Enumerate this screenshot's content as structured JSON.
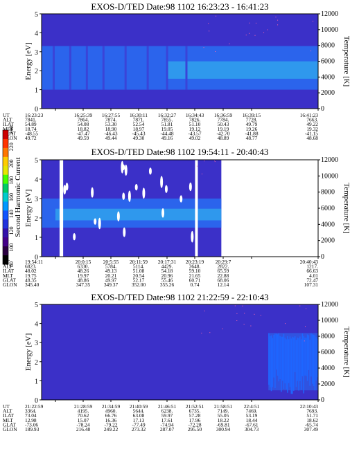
{
  "colorbar": {
    "label": "Second Harmonic Current",
    "ticks": [
      "240",
      "220",
      "200",
      "180",
      "160",
      "140",
      "120",
      "100",
      "80"
    ],
    "colors": [
      "#cc0000",
      "#ff3300",
      "#ff7700",
      "#ffcc00",
      "#e6e600",
      "#44ff00",
      "#00cc66",
      "#00cccc",
      "#0099ff",
      "#1155ff",
      "#2233dd",
      "#3311aa",
      "#440088",
      "#2a0040",
      "#000000"
    ]
  },
  "chart_data": [
    {
      "type": "heatmap",
      "title": "EXOS-D/TED   Date:98 1102   16:23:23 - 16:41:23",
      "ylabel": "Energy [eV]",
      "y2label": "Temperature [K]",
      "ylim": [
        0,
        5
      ],
      "y2lim": [
        0,
        12000
      ],
      "yticks": [
        "0",
        "1",
        "2",
        "3",
        "4",
        "5"
      ],
      "y2ticks": [
        "0",
        "2000",
        "4000",
        "6000",
        "8000",
        "10000",
        "12000"
      ],
      "colors": {
        "background": "#3b30c8",
        "band_low": "#2a6af0",
        "band_high": "#33c2ee",
        "noise": "#ff66aa"
      },
      "band": {
        "energy_low": 1.0,
        "energy_high": 3.3
      },
      "table": {
        "labels": [
          "UT",
          "ALT",
          "ILAT",
          "MLT",
          "GLAT",
          "GLON"
        ],
        "rows": [
          [
            "16:23:23",
            "16:25:39",
            "16:27:55",
            "16:30:11",
            "16:32:27",
            "16:34:43",
            "16:36:59",
            "16:39:15",
            "16:41:23"
          ],
          [
            "7841.",
            "7864.",
            "7874.",
            "7871.",
            "7855.",
            "7826.",
            "7784.",
            "7728.",
            "7663."
          ],
          [
            "54.89",
            "54.08",
            "53.30",
            "52.54",
            "51.81",
            "51.10",
            "50.43",
            "49.79",
            "49.22"
          ],
          [
            "18.74",
            "18.82",
            "18.90",
            "18.97",
            "19.05",
            "19.12",
            "19.19",
            "19.26",
            "19.32"
          ],
          [
            "-48.55",
            "-47.47",
            "-46.43",
            "-45.43",
            "-44.48",
            "-43.57",
            "-42.70",
            "-41.88",
            "-41.15"
          ],
          [
            "49.72",
            "49.59",
            "49.44",
            "49.30",
            "49.16",
            "49.02",
            "48.89",
            "48.77",
            "48.68"
          ]
        ]
      }
    },
    {
      "type": "heatmap",
      "title": "EXOS-D/TED   Date:98 1102   19:54:11 - 20:40:43",
      "ylabel": "Energy [eV]",
      "y2label": "Temperature [K]",
      "ylim": [
        0,
        5
      ],
      "y2lim": [
        0,
        12000
      ],
      "yticks": [
        "0",
        "1",
        "2",
        "3",
        "4",
        "5"
      ],
      "y2ticks": [
        "0",
        "2000",
        "4000",
        "6000",
        "8000",
        "10000",
        "12000"
      ],
      "colors": {
        "background": "#3b30c8",
        "band_low": "#2a6af0",
        "band_high": "#33c2ee",
        "noise": "#ff66aa"
      },
      "band": {
        "energy_low": 1.5,
        "energy_high": 3.0
      },
      "data_end_fraction": 0.65,
      "table": {
        "labels": [
          "UT",
          "ALT",
          "ILAT",
          "MLT",
          "GLAT",
          "GLON"
        ],
        "rows": [
          [
            "19:54:11",
            "20:0:15",
            "20:5:55",
            "20:11:59",
            "20:17:31",
            "20:23:19",
            "20:29:7",
            "",
            "20:40:43"
          ],
          [
            "6823.",
            "6330.",
            "5784.",
            "5114.",
            "4429.",
            "3648.",
            "2822.",
            "",
            "1217."
          ],
          [
            "48.02",
            "48.26",
            "49.13",
            "51.08",
            "54.18",
            "59.10",
            "65.59",
            "",
            "66.63"
          ],
          [
            "19.75",
            "19.97",
            "20.21",
            "20.54",
            "20.96",
            "21.65",
            "22.88",
            "",
            "4.01"
          ],
          [
            "48.35",
            "48.86",
            "49.97",
            "52.17",
            "55.46",
            "60.71",
            "68.06",
            "",
            "72.47"
          ],
          [
            "345.40",
            "347.35",
            "349.37",
            "352.00",
            "355.26",
            "0.74",
            "12.14",
            "",
            "107.31"
          ]
        ]
      }
    },
    {
      "type": "heatmap",
      "title": "EXOS-D/TED   Date:98 1102   21:22:59 - 22:10:43",
      "ylabel": "Energy [eV]",
      "y2label": "Temperature [K]",
      "ylim": [
        0,
        5
      ],
      "y2lim": [
        0,
        12000
      ],
      "yticks": [
        "0",
        "1",
        "2",
        "3",
        "4",
        "5"
      ],
      "y2ticks": [
        "0",
        "2000",
        "4000",
        "6000",
        "8000",
        "10000",
        "12000"
      ],
      "colors": {
        "background": "#3b30c8",
        "band_low": "#2a6af0",
        "band_high": "#33c2ee",
        "noise": "#ff66aa"
      },
      "band": {
        "energy_low": 0.5,
        "energy_high": 3.5,
        "start_fraction": 0.82
      },
      "table": {
        "labels": [
          "UT",
          "ALT",
          "ILAT",
          "MLT",
          "GLAT",
          "GLON"
        ],
        "rows": [
          [
            "21:22:59",
            "21:28:59",
            "21:34:59",
            "21:40:59",
            "21:46:51",
            "21:52:51",
            "21:58:51",
            "22:4:51",
            "22:10:43"
          ],
          [
            "3364.",
            "4195.",
            "4960.",
            "5644.",
            "6238.",
            "6735.",
            "7149.",
            "7469.",
            "7693."
          ],
          [
            "73.04",
            "70.62",
            "66.76",
            "63.08",
            "59.97",
            "57.28",
            "55.05",
            "53.19",
            "51.71"
          ],
          [
            "12.98",
            "15.07",
            "16.36",
            "17.13",
            "17.61",
            "17.96",
            "18.22",
            "18.44",
            "18.62"
          ],
          [
            "-73.06",
            "-78.24",
            "-79.22",
            "-77.49",
            "-74.94",
            "-72.28",
            "-69.81",
            "-67.61",
            "-65.74"
          ],
          [
            "189.93",
            "216.48",
            "249.22",
            "273.32",
            "287.07",
            "295.50",
            "300.94",
            "304.73",
            "307.49"
          ]
        ]
      }
    }
  ]
}
